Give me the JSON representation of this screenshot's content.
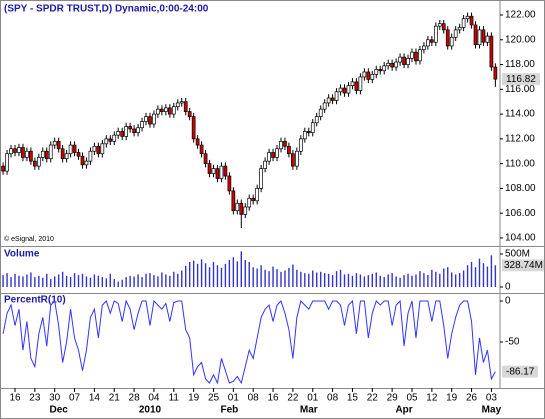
{
  "chart_data": [
    {
      "type": "candlestick",
      "title": "(SPY - SPDR TRUST,D) Dynamic,0:00-24:00",
      "annotation": "© eSignal, 2010",
      "categories": [
        null,
        null,
        null,
        "16",
        null,
        null,
        null,
        null,
        "23",
        null,
        null,
        null,
        null,
        "30",
        null,
        null,
        null,
        null,
        "07",
        null,
        null,
        null,
        null,
        "14",
        null,
        null,
        null,
        null,
        "21",
        null,
        null,
        null,
        null,
        "28",
        null,
        null,
        null,
        null,
        "04",
        null,
        null,
        null,
        null,
        "11",
        null,
        null,
        null,
        null,
        "19",
        null,
        null,
        null,
        null,
        "25",
        null,
        null,
        null,
        null,
        "01",
        null,
        null,
        null,
        null,
        "08",
        null,
        null,
        null,
        null,
        "16",
        null,
        null,
        null,
        null,
        "22",
        null,
        null,
        null,
        null,
        "01",
        null,
        null,
        null,
        null,
        "08",
        null,
        null,
        null,
        null,
        "15",
        null,
        null,
        null,
        null,
        "22",
        null,
        null,
        null,
        null,
        "29",
        null,
        null,
        null,
        null,
        "05",
        null,
        null,
        null,
        null,
        "12",
        null,
        null,
        null,
        null,
        "19",
        null,
        null,
        null,
        null,
        "26",
        null,
        null,
        null,
        null,
        "03",
        null
      ],
      "month_categories": [
        null,
        null,
        null,
        null,
        null,
        null,
        null,
        null,
        null,
        null,
        null,
        null,
        null,
        null,
        "Dec",
        null,
        null,
        null,
        null,
        null,
        null,
        null,
        null,
        null,
        null,
        null,
        null,
        null,
        null,
        null,
        null,
        null,
        null,
        null,
        null,
        null,
        null,
        "2010",
        null,
        null,
        null,
        null,
        null,
        null,
        null,
        null,
        null,
        null,
        null,
        null,
        null,
        null,
        null,
        null,
        null,
        null,
        null,
        "Feb",
        null,
        null,
        null,
        null,
        null,
        null,
        null,
        null,
        null,
        null,
        null,
        null,
        null,
        null,
        null,
        null,
        null,
        null,
        null,
        "Mar",
        null,
        null,
        null,
        null,
        null,
        null,
        null,
        null,
        null,
        null,
        null,
        null,
        null,
        null,
        null,
        null,
        null,
        null,
        null,
        null,
        null,
        null,
        null,
        "Apr",
        null,
        null,
        null,
        null,
        null,
        null,
        null,
        null,
        null,
        null,
        null,
        null,
        null,
        null,
        null,
        null,
        null,
        null,
        null,
        null,
        null,
        "May",
        null
      ],
      "open": [
        109.8,
        109.4,
        110.8,
        111.2,
        110.9,
        111.3,
        110.5,
        111.0,
        110.2,
        109.8,
        110.5,
        111.0,
        110.4,
        111.5,
        111.8,
        111.2,
        110.4,
        110.8,
        111.5,
        110.9,
        110.6,
        109.9,
        110.2,
        111.0,
        111.4,
        110.8,
        111.6,
        112.0,
        111.8,
        112.3,
        112.6,
        112.2,
        113.0,
        112.8,
        112.5,
        112.9,
        113.4,
        113.8,
        113.2,
        114.0,
        114.4,
        114.2,
        114.5,
        114.0,
        114.6,
        114.9,
        115.0,
        114.2,
        113.8,
        112.0,
        111.5,
        110.8,
        110.0,
        109.2,
        109.6,
        108.8,
        109.8,
        109.0,
        107.8,
        106.2,
        106.8,
        105.9,
        106.5,
        107.2,
        107.0,
        108.0,
        109.6,
        110.2,
        110.9,
        110.5,
        111.2,
        111.8,
        111.4,
        110.8,
        109.8,
        111.0,
        112.0,
        112.6,
        112.5,
        113.3,
        113.8,
        114.4,
        114.9,
        115.3,
        115.1,
        115.8,
        116.1,
        115.7,
        116.3,
        116.6,
        115.9,
        117.0,
        117.4,
        116.8,
        117.2,
        117.6,
        117.5,
        117.9,
        118.1,
        117.8,
        118.2,
        118.6,
        118.0,
        118.5,
        119.0,
        118.3,
        119.2,
        119.5,
        120.0,
        119.8,
        121.1,
        121.3,
        120.8,
        119.5,
        120.2,
        120.8,
        121.0,
        121.7,
        121.9,
        121.2,
        119.6,
        120.8,
        119.8,
        120.3,
        117.8
      ],
      "high": [
        110.1,
        111.1,
        111.5,
        111.5,
        111.6,
        111.6,
        111.3,
        111.3,
        110.5,
        110.8,
        111.3,
        111.3,
        111.8,
        112.1,
        112.1,
        111.5,
        111.1,
        111.8,
        111.8,
        111.2,
        110.9,
        110.5,
        111.3,
        111.7,
        111.7,
        111.9,
        112.3,
        112.3,
        112.6,
        112.9,
        112.9,
        113.3,
        113.3,
        113.1,
        113.2,
        113.7,
        114.1,
        114.1,
        114.3,
        114.7,
        114.7,
        114.8,
        114.8,
        114.9,
        115.2,
        115.3,
        115.3,
        114.5,
        114.1,
        112.3,
        111.8,
        111.1,
        110.3,
        109.9,
        109.9,
        110.1,
        110.1,
        109.3,
        108.1,
        107.1,
        107.1,
        106.8,
        107.5,
        107.5,
        108.3,
        109.9,
        110.5,
        111.2,
        111.2,
        111.5,
        112.1,
        112.1,
        111.7,
        111.1,
        111.3,
        112.3,
        112.9,
        112.9,
        113.6,
        114.1,
        114.7,
        115.2,
        115.6,
        115.6,
        116.1,
        116.4,
        116.4,
        116.6,
        116.9,
        116.9,
        117.3,
        117.7,
        117.7,
        117.5,
        117.9,
        117.9,
        118.2,
        118.4,
        118.4,
        118.5,
        118.9,
        118.9,
        118.8,
        119.3,
        119.3,
        119.5,
        119.8,
        120.3,
        120.3,
        121.4,
        121.6,
        121.6,
        121.1,
        120.5,
        121.1,
        121.3,
        122.0,
        122.2,
        122.2,
        121.5,
        121.1,
        121.1,
        120.6,
        120.6,
        118.1
      ],
      "low": [
        109.1,
        109.1,
        110.5,
        110.6,
        110.6,
        110.2,
        110.2,
        109.9,
        109.5,
        109.5,
        110.2,
        110.1,
        110.1,
        111.2,
        110.9,
        110.1,
        110.1,
        110.5,
        110.6,
        110.3,
        109.6,
        109.6,
        109.9,
        110.7,
        110.5,
        110.5,
        111.3,
        111.5,
        111.5,
        112.0,
        111.9,
        111.9,
        112.5,
        112.2,
        112.2,
        112.6,
        113.1,
        112.9,
        112.9,
        113.7,
        113.9,
        113.9,
        113.7,
        113.7,
        114.3,
        114.6,
        113.9,
        113.5,
        111.7,
        111.2,
        110.5,
        109.7,
        108.9,
        108.9,
        108.5,
        108.5,
        108.7,
        107.5,
        105.9,
        105.9,
        104.8,
        105.6,
        106.2,
        106.7,
        106.7,
        107.7,
        109.3,
        109.9,
        110.2,
        110.2,
        110.9,
        111.1,
        110.5,
        109.5,
        109.5,
        110.7,
        111.7,
        112.2,
        112.2,
        113.0,
        113.5,
        114.1,
        114.6,
        114.8,
        114.8,
        115.5,
        115.4,
        115.4,
        116.0,
        115.6,
        115.6,
        116.7,
        116.5,
        116.5,
        116.9,
        117.2,
        117.2,
        117.6,
        117.5,
        117.5,
        117.9,
        117.7,
        117.7,
        118.2,
        118.0,
        118.0,
        118.9,
        119.2,
        119.5,
        119.5,
        120.8,
        120.5,
        119.2,
        119.2,
        119.9,
        120.5,
        120.7,
        121.4,
        120.9,
        119.3,
        119.3,
        119.5,
        119.5,
        117.5,
        116.2
      ],
      "close": [
        109.4,
        110.8,
        111.2,
        110.9,
        111.3,
        110.5,
        111.0,
        110.2,
        109.8,
        110.5,
        111.0,
        110.4,
        111.5,
        111.8,
        111.2,
        110.4,
        110.8,
        111.5,
        110.9,
        110.6,
        109.9,
        110.2,
        111.0,
        111.4,
        110.8,
        111.6,
        112.0,
        111.8,
        112.3,
        112.6,
        112.2,
        113.0,
        112.8,
        112.5,
        112.9,
        113.4,
        113.8,
        113.2,
        114.0,
        114.4,
        114.2,
        114.5,
        114.0,
        114.6,
        114.9,
        115.0,
        114.2,
        113.8,
        112.0,
        111.5,
        110.8,
        110.0,
        109.2,
        109.6,
        108.8,
        109.8,
        109.0,
        107.8,
        106.2,
        106.8,
        105.9,
        106.5,
        107.2,
        107.0,
        108.0,
        109.6,
        110.2,
        110.9,
        110.5,
        111.2,
        111.8,
        111.4,
        110.8,
        109.8,
        111.0,
        112.0,
        112.6,
        112.5,
        113.3,
        113.8,
        114.4,
        114.9,
        115.3,
        115.1,
        115.8,
        116.1,
        115.7,
        116.3,
        116.6,
        115.9,
        117.0,
        117.4,
        116.8,
        117.2,
        117.6,
        117.5,
        117.9,
        118.1,
        117.8,
        118.2,
        118.6,
        118.0,
        118.5,
        119.0,
        118.3,
        119.2,
        119.5,
        120.0,
        119.8,
        121.1,
        121.3,
        120.8,
        119.5,
        120.2,
        120.8,
        121.0,
        121.7,
        121.9,
        121.2,
        119.6,
        120.8,
        119.8,
        120.3,
        117.8,
        116.82
      ],
      "up_color": "#ffffff",
      "down_color": "#cc0000",
      "stroke": "#000000",
      "ylim": [
        103.35,
        123.05
      ],
      "yticks": [
        {
          "value": 104,
          "label": "104.00"
        },
        {
          "value": 106,
          "label": "106.00"
        },
        {
          "value": 108,
          "label": "108.00"
        },
        {
          "value": 110,
          "label": "110.00"
        },
        {
          "value": 112,
          "label": "112.00"
        },
        {
          "value": 114,
          "label": "114.00"
        },
        {
          "value": 116,
          "label": "116.00"
        },
        {
          "value": 118,
          "label": "118.00"
        },
        {
          "value": 120,
          "label": "120.00"
        },
        {
          "value": 122,
          "label": "122.00"
        }
      ]
    },
    {
      "type": "bar",
      "title": "Volume",
      "color": "#3333cc",
      "values": [
        180,
        210,
        150,
        200,
        170,
        160,
        190,
        220,
        150,
        170,
        140,
        200,
        120,
        160,
        190,
        230,
        170,
        150,
        210,
        180,
        200,
        160,
        140,
        190,
        170,
        150,
        130,
        200,
        120,
        80,
        110,
        150,
        170,
        160,
        190,
        150,
        200,
        210,
        180,
        160,
        220,
        190,
        170,
        230,
        200,
        250,
        320,
        380,
        400,
        350,
        420,
        360,
        300,
        380,
        330,
        290,
        350,
        410,
        450,
        390,
        540,
        410,
        380,
        300,
        280,
        330,
        260,
        240,
        310,
        270,
        230,
        250,
        290,
        340,
        260,
        230,
        210,
        200,
        250,
        220,
        230,
        210,
        200,
        180,
        240,
        260,
        190,
        200,
        170,
        210,
        190,
        160,
        180,
        200,
        220,
        170,
        150,
        190,
        210,
        160,
        140,
        180,
        200,
        170,
        190,
        240,
        210,
        180,
        260,
        230,
        200,
        280,
        300,
        220,
        190,
        210,
        250,
        330,
        380,
        300,
        430,
        360,
        310,
        480,
        328.74
      ],
      "last_value_label": "328.74M",
      "ylim": [
        -76,
        591
      ],
      "yticks": [
        0,
        {
          "value": 500,
          "label": "500M"
        }
      ]
    },
    {
      "type": "line",
      "title": "PercentR(10)",
      "color": "#3333ff",
      "values": [
        -40,
        -15,
        -5,
        -30,
        -10,
        -60,
        -25,
        -70,
        -80,
        -40,
        -20,
        -55,
        -5,
        0,
        -30,
        -75,
        -50,
        -10,
        -45,
        -60,
        -85,
        -60,
        -20,
        -10,
        -45,
        -5,
        0,
        -15,
        0,
        -3,
        -25,
        0,
        -10,
        -35,
        -15,
        0,
        0,
        -30,
        0,
        -5,
        -10,
        -3,
        -25,
        -2,
        0,
        0,
        -35,
        -45,
        -90,
        -80,
        -75,
        -95,
        -100,
        -90,
        -100,
        -70,
        -85,
        -100,
        -98,
        -92,
        -100,
        -80,
        -60,
        -70,
        -45,
        -20,
        -10,
        -5,
        -25,
        -5,
        0,
        -15,
        -35,
        -70,
        -20,
        0,
        -5,
        -10,
        0,
        0,
        0,
        0,
        -10,
        0,
        0,
        -5,
        -30,
        -5,
        0,
        -40,
        0,
        0,
        -45,
        -15,
        0,
        -5,
        0,
        0,
        -30,
        -5,
        0,
        -55,
        -15,
        0,
        -45,
        0,
        0,
        0,
        -25,
        0,
        0,
        -30,
        -70,
        -40,
        -20,
        -5,
        0,
        0,
        -25,
        -90,
        -45,
        -75,
        -60,
        -95,
        -86.17
      ],
      "ylim": [
        -106.1,
        7.3
      ],
      "yticks": [
        0,
        -50
      ]
    }
  ]
}
